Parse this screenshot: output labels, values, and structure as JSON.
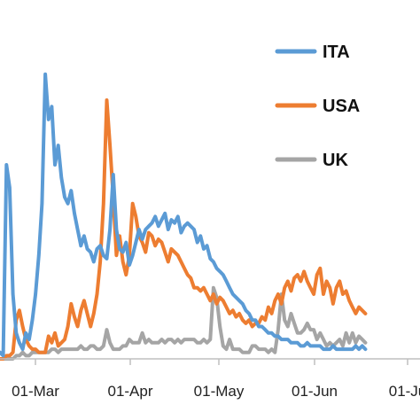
{
  "chart_data": {
    "type": "line",
    "title": "",
    "xlabel": "",
    "ylabel": "",
    "x_ticks": [
      "01-Mar",
      "01-Apr",
      "01-May",
      "01-Jun",
      "01-Ju"
    ],
    "legend_position": "top-right",
    "grid": false,
    "series": [
      {
        "name": "ITA",
        "color": "#5B9BD5",
        "points": [
          [
            0,
            2
          ],
          [
            1,
            1
          ],
          [
            2,
            60
          ],
          [
            3,
            53
          ],
          [
            4,
            20
          ],
          [
            5,
            8
          ],
          [
            6,
            5
          ],
          [
            7,
            3
          ],
          [
            8,
            8
          ],
          [
            9,
            6
          ],
          [
            10,
            12
          ],
          [
            11,
            20
          ],
          [
            12,
            32
          ],
          [
            13,
            48
          ],
          [
            14,
            88
          ],
          [
            15,
            74
          ],
          [
            16,
            78
          ],
          [
            17,
            60
          ],
          [
            18,
            66
          ],
          [
            19,
            56
          ],
          [
            20,
            50
          ],
          [
            21,
            48
          ],
          [
            22,
            52
          ],
          [
            23,
            45
          ],
          [
            24,
            40
          ],
          [
            25,
            35
          ],
          [
            26,
            38
          ],
          [
            27,
            34
          ],
          [
            28,
            33
          ],
          [
            29,
            30
          ],
          [
            30,
            34
          ],
          [
            31,
            35
          ],
          [
            32,
            32
          ],
          [
            33,
            31
          ],
          [
            34,
            40
          ],
          [
            35,
            57
          ],
          [
            36,
            40
          ],
          [
            37,
            34
          ],
          [
            38,
            33
          ],
          [
            39,
            36
          ],
          [
            40,
            29
          ],
          [
            41,
            32
          ],
          [
            42,
            36
          ],
          [
            43,
            40
          ],
          [
            44,
            37
          ],
          [
            45,
            40
          ],
          [
            46,
            41
          ],
          [
            47,
            42
          ],
          [
            48,
            44
          ],
          [
            49,
            41
          ],
          [
            50,
            43
          ],
          [
            51,
            45
          ],
          [
            52,
            40
          ],
          [
            53,
            43
          ],
          [
            54,
            42
          ],
          [
            55,
            44
          ],
          [
            56,
            39
          ],
          [
            57,
            41
          ],
          [
            58,
            42
          ],
          [
            59,
            41
          ],
          [
            60,
            40
          ],
          [
            61,
            36
          ],
          [
            62,
            38
          ],
          [
            63,
            34
          ],
          [
            64,
            35
          ],
          [
            65,
            31
          ],
          [
            66,
            30
          ],
          [
            67,
            28
          ],
          [
            68,
            27
          ],
          [
            69,
            26
          ],
          [
            70,
            24
          ],
          [
            71,
            22
          ],
          [
            72,
            20
          ],
          [
            73,
            19
          ],
          [
            74,
            18
          ],
          [
            75,
            17
          ],
          [
            76,
            15
          ],
          [
            77,
            14
          ],
          [
            78,
            12
          ],
          [
            79,
            12
          ],
          [
            80,
            10
          ],
          [
            81,
            10
          ],
          [
            82,
            9
          ],
          [
            83,
            8
          ],
          [
            84,
            8
          ],
          [
            85,
            7
          ],
          [
            86,
            7
          ],
          [
            87,
            6
          ],
          [
            88,
            6
          ],
          [
            89,
            6
          ],
          [
            90,
            5
          ],
          [
            91,
            5
          ],
          [
            92,
            5
          ],
          [
            93,
            4
          ],
          [
            94,
            4
          ],
          [
            95,
            5
          ],
          [
            96,
            4
          ],
          [
            97,
            4
          ],
          [
            98,
            4
          ],
          [
            99,
            4
          ],
          [
            100,
            3
          ],
          [
            101,
            3
          ],
          [
            102,
            3
          ],
          [
            103,
            4
          ],
          [
            104,
            3
          ],
          [
            105,
            3
          ],
          [
            106,
            3
          ],
          [
            107,
            3
          ],
          [
            108,
            3
          ],
          [
            109,
            3
          ],
          [
            110,
            4
          ],
          [
            111,
            3
          ],
          [
            112,
            4
          ],
          [
            113,
            3
          ]
        ]
      },
      {
        "name": "USA",
        "color": "#ED7D31",
        "points": [
          [
            0,
            0
          ],
          [
            1,
            0
          ],
          [
            2,
            1
          ],
          [
            3,
            1
          ],
          [
            4,
            2
          ],
          [
            5,
            12
          ],
          [
            6,
            15
          ],
          [
            7,
            10
          ],
          [
            8,
            6
          ],
          [
            9,
            4
          ],
          [
            10,
            3
          ],
          [
            11,
            3
          ],
          [
            12,
            2
          ],
          [
            13,
            2
          ],
          [
            14,
            2
          ],
          [
            15,
            7
          ],
          [
            16,
            5
          ],
          [
            17,
            8
          ],
          [
            18,
            4
          ],
          [
            19,
            5
          ],
          [
            20,
            6
          ],
          [
            21,
            10
          ],
          [
            22,
            17
          ],
          [
            23,
            13
          ],
          [
            24,
            10
          ],
          [
            25,
            15
          ],
          [
            26,
            18
          ],
          [
            27,
            14
          ],
          [
            28,
            10
          ],
          [
            29,
            14
          ],
          [
            30,
            20
          ],
          [
            31,
            30
          ],
          [
            32,
            48
          ],
          [
            33,
            80
          ],
          [
            34,
            66
          ],
          [
            35,
            50
          ],
          [
            36,
            32
          ],
          [
            37,
            38
          ],
          [
            38,
            30
          ],
          [
            39,
            26
          ],
          [
            40,
            32
          ],
          [
            41,
            48
          ],
          [
            42,
            44
          ],
          [
            43,
            38
          ],
          [
            44,
            36
          ],
          [
            45,
            33
          ],
          [
            46,
            39
          ],
          [
            47,
            38
          ],
          [
            48,
            35
          ],
          [
            49,
            37
          ],
          [
            50,
            36
          ],
          [
            51,
            33
          ],
          [
            52,
            30
          ],
          [
            53,
            34
          ],
          [
            54,
            33
          ],
          [
            55,
            32
          ],
          [
            56,
            30
          ],
          [
            57,
            28
          ],
          [
            58,
            26
          ],
          [
            59,
            25
          ],
          [
            60,
            22
          ],
          [
            61,
            22
          ],
          [
            62,
            21
          ],
          [
            63,
            22
          ],
          [
            64,
            20
          ],
          [
            65,
            18
          ],
          [
            66,
            20
          ],
          [
            67,
            17
          ],
          [
            68,
            19
          ],
          [
            69,
            18
          ],
          [
            70,
            16
          ],
          [
            71,
            14
          ],
          [
            72,
            15
          ],
          [
            73,
            13
          ],
          [
            74,
            14
          ],
          [
            75,
            12
          ],
          [
            76,
            11
          ],
          [
            77,
            12
          ],
          [
            78,
            10
          ],
          [
            79,
            11
          ],
          [
            80,
            11
          ],
          [
            81,
            13
          ],
          [
            82,
            12
          ],
          [
            83,
            16
          ],
          [
            84,
            14
          ],
          [
            85,
            18
          ],
          [
            86,
            20
          ],
          [
            87,
            17
          ],
          [
            88,
            22
          ],
          [
            89,
            24
          ],
          [
            90,
            21
          ],
          [
            91,
            25
          ],
          [
            92,
            26
          ],
          [
            93,
            24
          ],
          [
            94,
            27
          ],
          [
            95,
            24
          ],
          [
            96,
            22
          ],
          [
            97,
            20
          ],
          [
            98,
            26
          ],
          [
            99,
            28
          ],
          [
            100,
            20
          ],
          [
            101,
            24
          ],
          [
            102,
            22
          ],
          [
            103,
            17
          ],
          [
            104,
            22
          ],
          [
            105,
            24
          ],
          [
            106,
            20
          ],
          [
            107,
            21
          ],
          [
            108,
            18
          ],
          [
            109,
            16
          ],
          [
            110,
            14
          ],
          [
            111,
            16
          ],
          [
            112,
            15
          ],
          [
            113,
            14
          ]
        ]
      },
      {
        "name": "UK",
        "color": "#A5A5A5",
        "points": [
          [
            0,
            0
          ],
          [
            1,
            0
          ],
          [
            2,
            0
          ],
          [
            3,
            0
          ],
          [
            4,
            0
          ],
          [
            5,
            1
          ],
          [
            6,
            1
          ],
          [
            7,
            2
          ],
          [
            8,
            1
          ],
          [
            9,
            1
          ],
          [
            10,
            2
          ],
          [
            11,
            2
          ],
          [
            12,
            2
          ],
          [
            13,
            2
          ],
          [
            14,
            2
          ],
          [
            15,
            2
          ],
          [
            16,
            3
          ],
          [
            17,
            3
          ],
          [
            18,
            2
          ],
          [
            19,
            3
          ],
          [
            20,
            3
          ],
          [
            21,
            3
          ],
          [
            22,
            3
          ],
          [
            23,
            3
          ],
          [
            24,
            3
          ],
          [
            25,
            4
          ],
          [
            26,
            3
          ],
          [
            27,
            3
          ],
          [
            28,
            4
          ],
          [
            29,
            4
          ],
          [
            30,
            3
          ],
          [
            31,
            3
          ],
          [
            32,
            4
          ],
          [
            33,
            9
          ],
          [
            34,
            5
          ],
          [
            35,
            3
          ],
          [
            36,
            3
          ],
          [
            37,
            3
          ],
          [
            38,
            4
          ],
          [
            39,
            4
          ],
          [
            40,
            6
          ],
          [
            41,
            5
          ],
          [
            42,
            5
          ],
          [
            43,
            5
          ],
          [
            44,
            8
          ],
          [
            45,
            5
          ],
          [
            46,
            6
          ],
          [
            47,
            5
          ],
          [
            48,
            5
          ],
          [
            49,
            5
          ],
          [
            50,
            6
          ],
          [
            51,
            5
          ],
          [
            52,
            6
          ],
          [
            53,
            6
          ],
          [
            54,
            5
          ],
          [
            55,
            6
          ],
          [
            56,
            5
          ],
          [
            57,
            6
          ],
          [
            58,
            6
          ],
          [
            59,
            6
          ],
          [
            60,
            6
          ],
          [
            61,
            5
          ],
          [
            62,
            5
          ],
          [
            63,
            6
          ],
          [
            64,
            5
          ],
          [
            65,
            6
          ],
          [
            66,
            22
          ],
          [
            67,
            19
          ],
          [
            68,
            10
          ],
          [
            69,
            4
          ],
          [
            70,
            3
          ],
          [
            71,
            6
          ],
          [
            72,
            3
          ],
          [
            73,
            3
          ],
          [
            74,
            3
          ],
          [
            75,
            2
          ],
          [
            76,
            2
          ],
          [
            77,
            2
          ],
          [
            78,
            4
          ],
          [
            79,
            4
          ],
          [
            80,
            3
          ],
          [
            81,
            3
          ],
          [
            82,
            3
          ],
          [
            83,
            2
          ],
          [
            84,
            3
          ],
          [
            85,
            2
          ],
          [
            86,
            9
          ],
          [
            87,
            20
          ],
          [
            88,
            12
          ],
          [
            89,
            10
          ],
          [
            90,
            14
          ],
          [
            91,
            11
          ],
          [
            92,
            8
          ],
          [
            93,
            8
          ],
          [
            94,
            9
          ],
          [
            95,
            11
          ],
          [
            96,
            9
          ],
          [
            97,
            9
          ],
          [
            98,
            6
          ],
          [
            99,
            8
          ],
          [
            100,
            6
          ],
          [
            101,
            4
          ],
          [
            102,
            5
          ],
          [
            103,
            4
          ],
          [
            104,
            5
          ],
          [
            105,
            6
          ],
          [
            106,
            4
          ],
          [
            107,
            8
          ],
          [
            108,
            5
          ],
          [
            109,
            8
          ],
          [
            110,
            5
          ],
          [
            111,
            7
          ],
          [
            112,
            6
          ],
          [
            113,
            5
          ]
        ]
      }
    ]
  }
}
